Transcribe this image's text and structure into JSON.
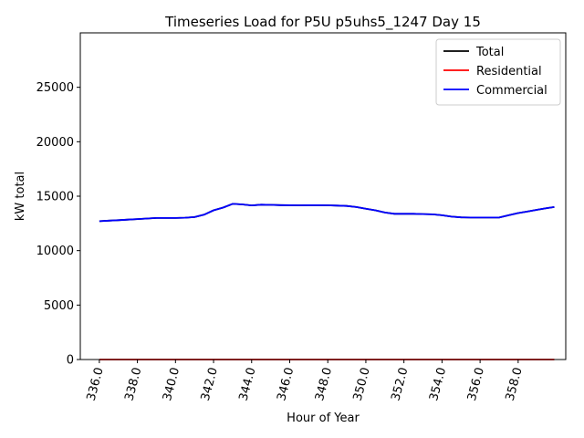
{
  "chart_data": {
    "type": "line",
    "title": "Timeseries Load for P5U p5uhs5_1247  Day 15",
    "xlabel": "Hour of Year",
    "ylabel": "kW total",
    "xlim": [
      335,
      360.5
    ],
    "ylim": [
      0,
      30000
    ],
    "x_ticks": [
      336,
      338,
      340,
      342,
      344,
      346,
      348,
      350,
      352,
      354,
      356,
      358
    ],
    "x_tick_labels": [
      "336.0",
      "338.0",
      "340.0",
      "342.0",
      "344.0",
      "346.0",
      "348.0",
      "350.0",
      "352.0",
      "354.0",
      "356.0",
      "358.0"
    ],
    "y_ticks": [
      0,
      5000,
      10000,
      15000,
      20000,
      25000
    ],
    "y_tick_labels": [
      "0",
      "5000",
      "10000",
      "15000",
      "20000",
      "25000"
    ],
    "legend_position": "top-right",
    "x": [
      336.0,
      336.5,
      337.0,
      337.5,
      338.0,
      338.5,
      339.0,
      339.5,
      340.0,
      340.5,
      341.0,
      341.5,
      342.0,
      342.5,
      343.0,
      343.5,
      344.0,
      344.5,
      345.0,
      345.5,
      346.0,
      346.5,
      347.0,
      347.5,
      348.0,
      348.5,
      349.0,
      349.5,
      350.0,
      350.5,
      351.0,
      351.5,
      352.0,
      352.5,
      353.0,
      353.5,
      354.0,
      354.5,
      355.0,
      355.5,
      356.0,
      356.5,
      357.0,
      357.5,
      358.0,
      358.5,
      359.0,
      359.5,
      359.9
    ],
    "series": [
      {
        "name": "Total",
        "color": "#000000",
        "values": [
          12700,
          12750,
          12800,
          12850,
          12900,
          12950,
          13000,
          13000,
          13000,
          13020,
          13080,
          13300,
          13700,
          13950,
          14300,
          14250,
          14150,
          14220,
          14200,
          14180,
          14170,
          14160,
          14170,
          14170,
          14160,
          14140,
          14100,
          14000,
          13850,
          13700,
          13500,
          13380,
          13380,
          13380,
          13360,
          13330,
          13250,
          13120,
          13060,
          13040,
          13040,
          13040,
          13040,
          13250,
          13450,
          13600,
          13750,
          13900,
          14000
        ]
      },
      {
        "name": "Residential",
        "color": "#ff0000",
        "values": [
          0,
          0,
          0,
          0,
          0,
          0,
          0,
          0,
          0,
          0,
          0,
          0,
          0,
          0,
          0,
          0,
          0,
          0,
          0,
          0,
          0,
          0,
          0,
          0,
          0,
          0,
          0,
          0,
          0,
          0,
          0,
          0,
          0,
          0,
          0,
          0,
          0,
          0,
          0,
          0,
          0,
          0,
          0,
          0,
          0,
          0,
          0,
          0,
          0
        ]
      },
      {
        "name": "Commercial",
        "color": "#0000ff",
        "values": [
          12700,
          12750,
          12800,
          12850,
          12900,
          12950,
          13000,
          13000,
          13000,
          13020,
          13080,
          13300,
          13700,
          13950,
          14300,
          14250,
          14150,
          14220,
          14200,
          14180,
          14170,
          14160,
          14170,
          14170,
          14160,
          14140,
          14100,
          14000,
          13850,
          13700,
          13500,
          13380,
          13380,
          13380,
          13360,
          13330,
          13250,
          13120,
          13060,
          13040,
          13040,
          13040,
          13040,
          13250,
          13450,
          13600,
          13750,
          13900,
          14000
        ]
      }
    ]
  }
}
